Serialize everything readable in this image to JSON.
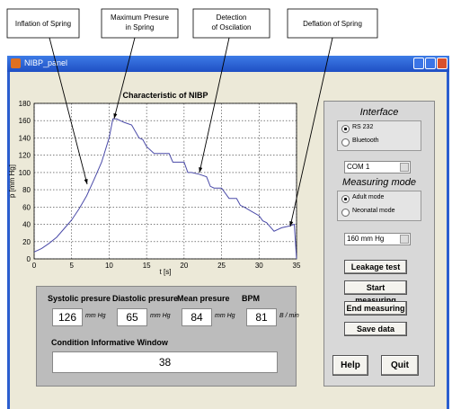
{
  "callouts": [
    "Inflation of Spring",
    "Maximum Presure in Spring",
    "Detection of Oscilation",
    "Deflation of Spring"
  ],
  "window": {
    "title": "NIBP_panel"
  },
  "chart_data": {
    "type": "line",
    "title": "Characteristic of NIBP",
    "xlabel": "t [s]",
    "ylabel": "p [mm Hg]",
    "x": [
      0,
      1,
      2,
      3,
      4,
      5,
      6,
      7,
      8,
      9,
      10,
      10.5,
      11,
      12,
      13,
      14,
      14.5,
      15,
      16,
      17,
      18,
      18.5,
      19,
      20,
      20.5,
      21,
      22,
      23,
      23.5,
      24,
      25,
      26,
      27,
      27.5,
      28,
      29,
      30,
      30.5,
      31,
      32,
      33,
      34,
      34.7,
      35
    ],
    "values": [
      8,
      12,
      18,
      25,
      35,
      45,
      58,
      73,
      92,
      112,
      140,
      162,
      162,
      158,
      155,
      140,
      138,
      130,
      122,
      122,
      122,
      112,
      112,
      112,
      100,
      100,
      98,
      95,
      84,
      82,
      82,
      70,
      70,
      62,
      60,
      55,
      50,
      44,
      42,
      32,
      36,
      38,
      40,
      0
    ],
    "color": "#4a4aa8",
    "xlim": [
      0,
      35
    ],
    "ylim": [
      0,
      180
    ],
    "xticks": [
      0,
      5,
      10,
      15,
      20,
      25,
      30,
      35
    ],
    "yticks": [
      0,
      20,
      40,
      60,
      80,
      100,
      120,
      140,
      160,
      180
    ],
    "grid": true
  },
  "interface": {
    "title": "Interface",
    "options": [
      "RS 232",
      "Bluetooth"
    ],
    "selected": 0,
    "port": "COM 1"
  },
  "measuring": {
    "title": "Measuring mode",
    "options": [
      "Adult mode",
      "Neonatal mode"
    ],
    "selected": 0,
    "range": "160 mm Hg"
  },
  "buttons": [
    "Leakage test",
    "Start measuring",
    "End measuring",
    "Save data"
  ],
  "footer_buttons": [
    "Help",
    "Quit"
  ],
  "results": {
    "fields": [
      {
        "label": "Systolic presure",
        "value": 126,
        "unit": "mm Hg"
      },
      {
        "label": "Diastolic presure",
        "value": 65,
        "unit": "mm Hg"
      },
      {
        "label": "Mean presure",
        "value": 84,
        "unit": "mm Hg"
      },
      {
        "label": "BPM",
        "value": 81,
        "unit": "B / min"
      }
    ],
    "condition_label": "Condition Informative Window",
    "condition_value": 38
  }
}
